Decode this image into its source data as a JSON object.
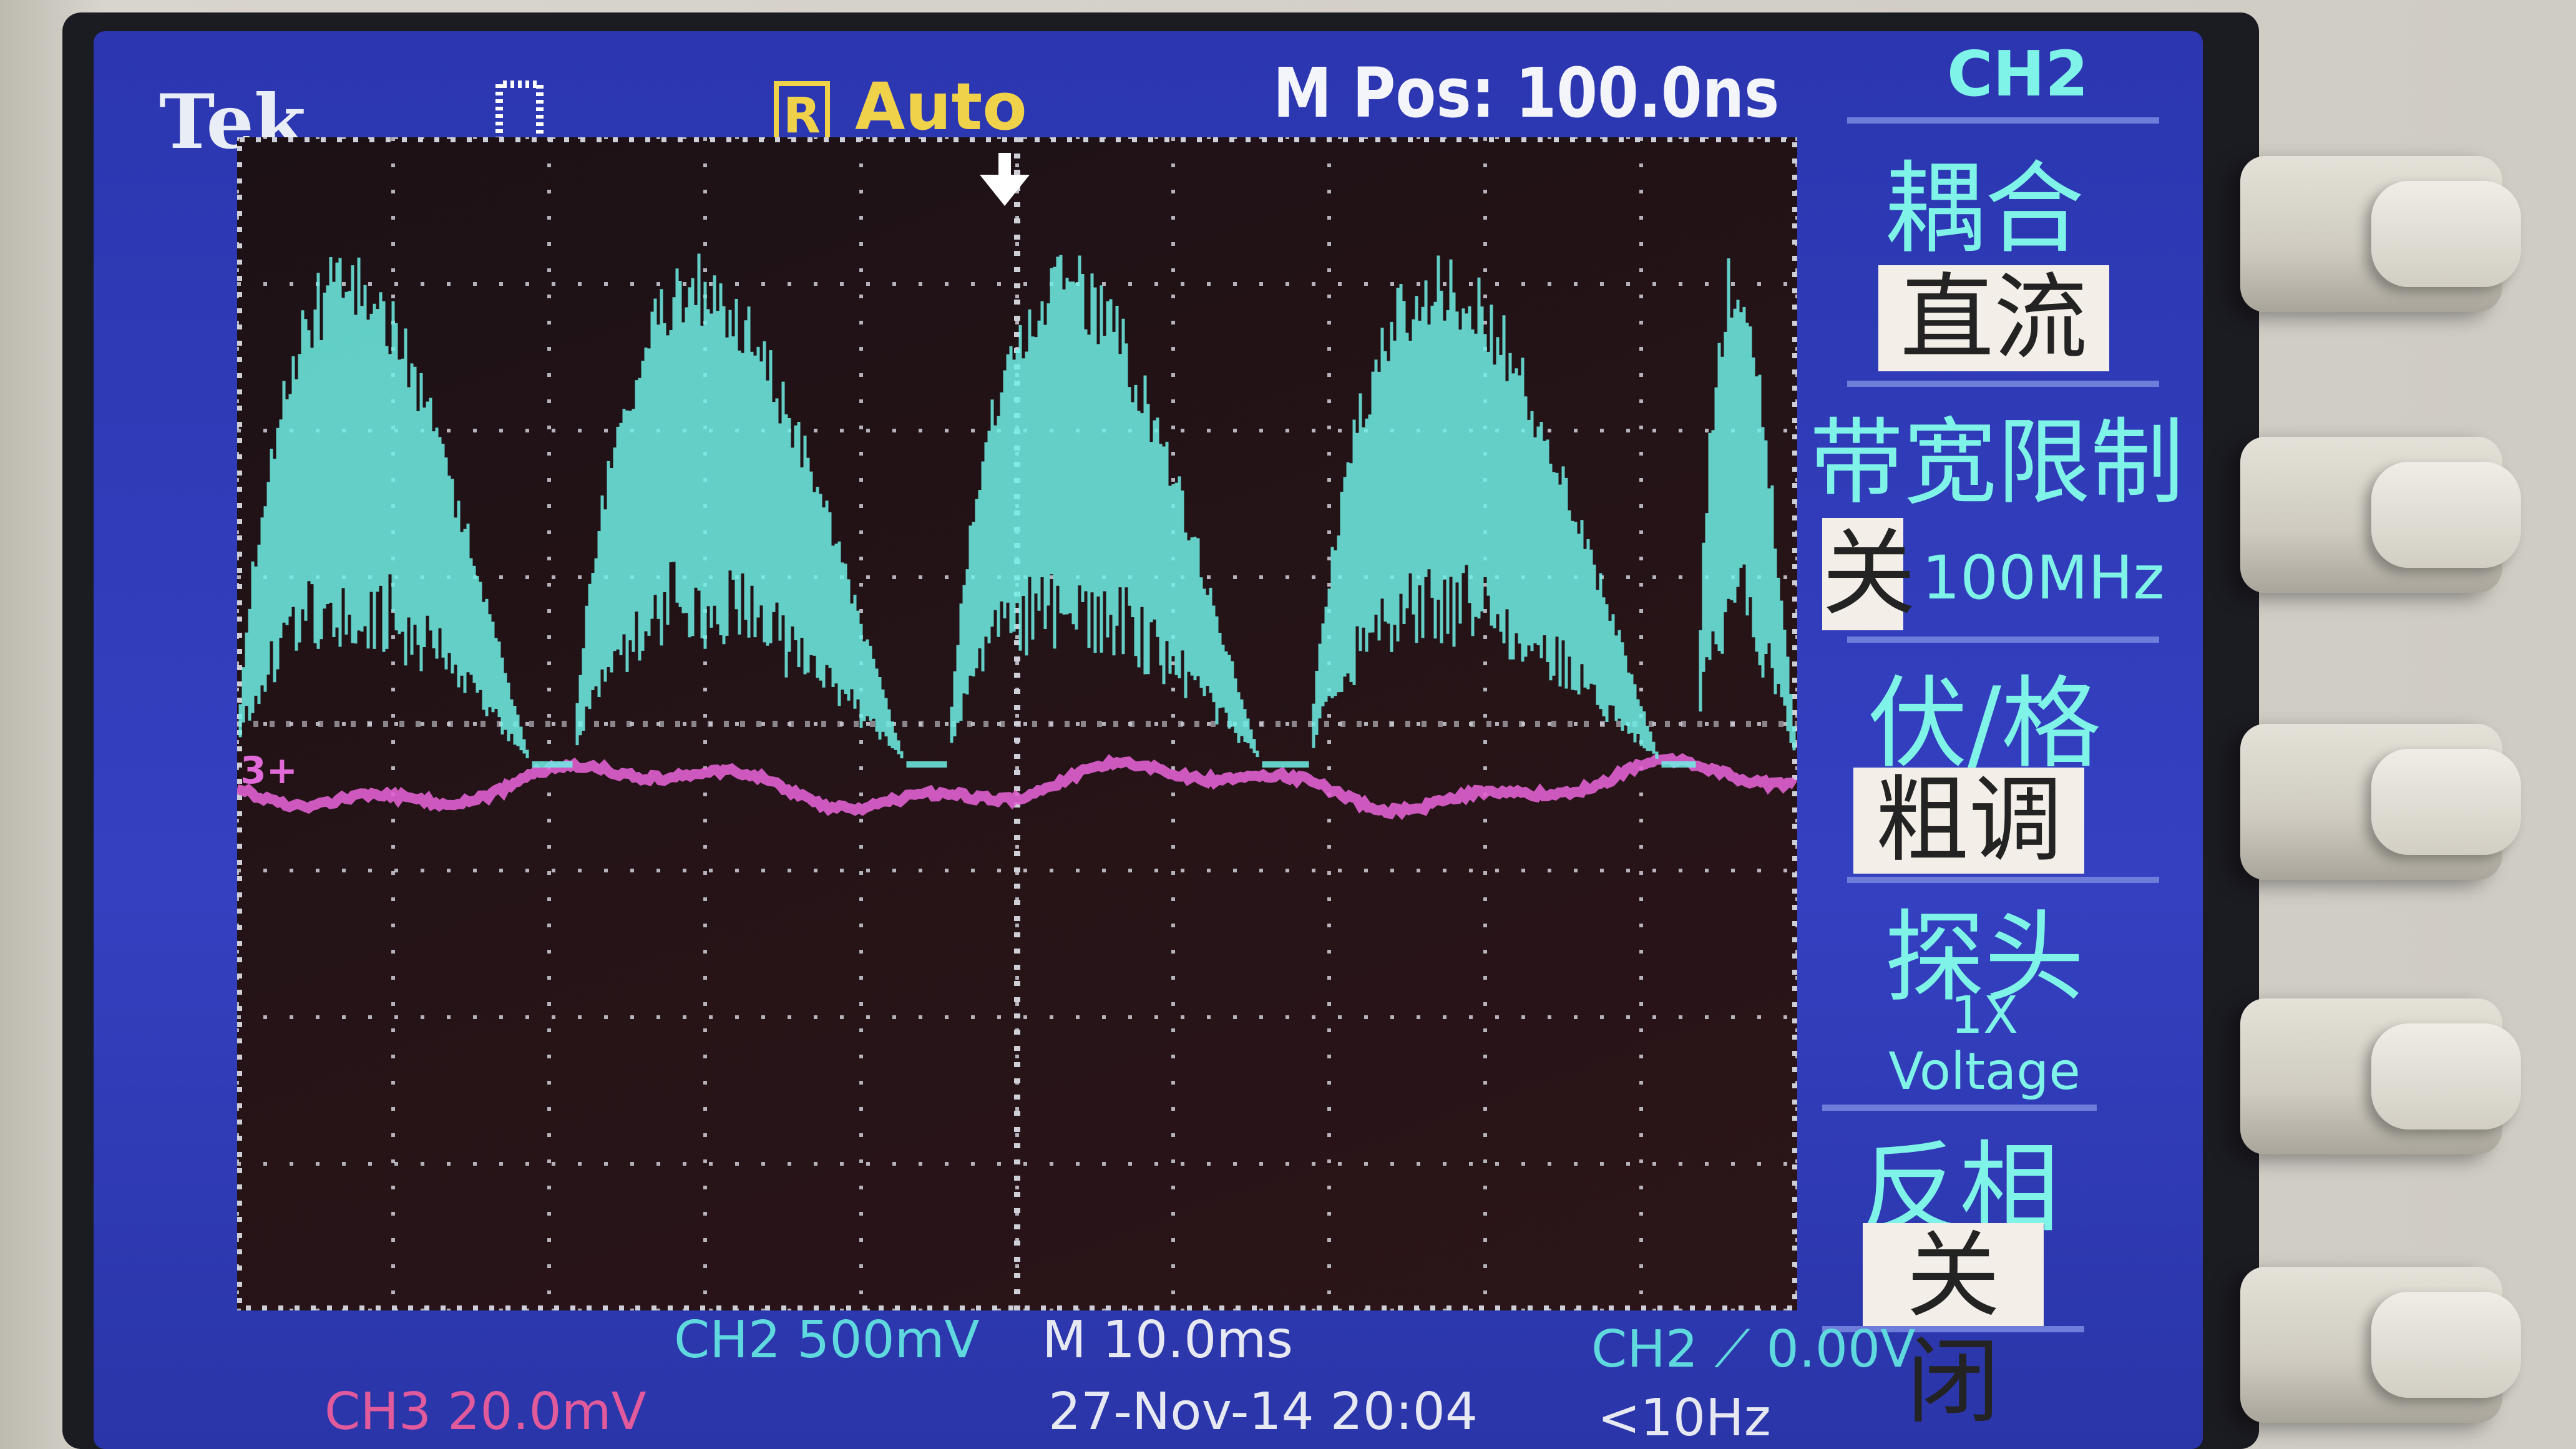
{
  "header": {
    "brand": "Tek",
    "trigger_mode_badge": "R",
    "trigger_mode": "Auto",
    "m_pos": "M Pos: 100.0ns",
    "pulse_icon": "pulse-icon"
  },
  "side_menu": {
    "channel": "CH2",
    "items": [
      {
        "title": "耦合",
        "value": "直流"
      },
      {
        "title": "带宽限制",
        "value": "关",
        "value_extra": "100MHz"
      },
      {
        "title": "伏/格",
        "value": "粗调"
      },
      {
        "title": "探头",
        "value": "1X",
        "value_extra": "Voltage"
      },
      {
        "title": "反相",
        "value": "关闭"
      }
    ]
  },
  "footer": {
    "ch2_scale": "CH2  500mV",
    "timebase": "M 10.0ms",
    "trigger": "CH2 ⟋ 0.00V",
    "ch3_scale": "CH3  20.0mV",
    "datetime": "27-Nov-14 20:04",
    "freq": "<10Hz"
  },
  "ch3_marker": "3+",
  "colors": {
    "screen": "#2d39b8",
    "ch2": "#6ff0e6",
    "ch3": "#e060d0",
    "grid": "#cfcfd8",
    "trigger": "#f0d24a"
  }
}
